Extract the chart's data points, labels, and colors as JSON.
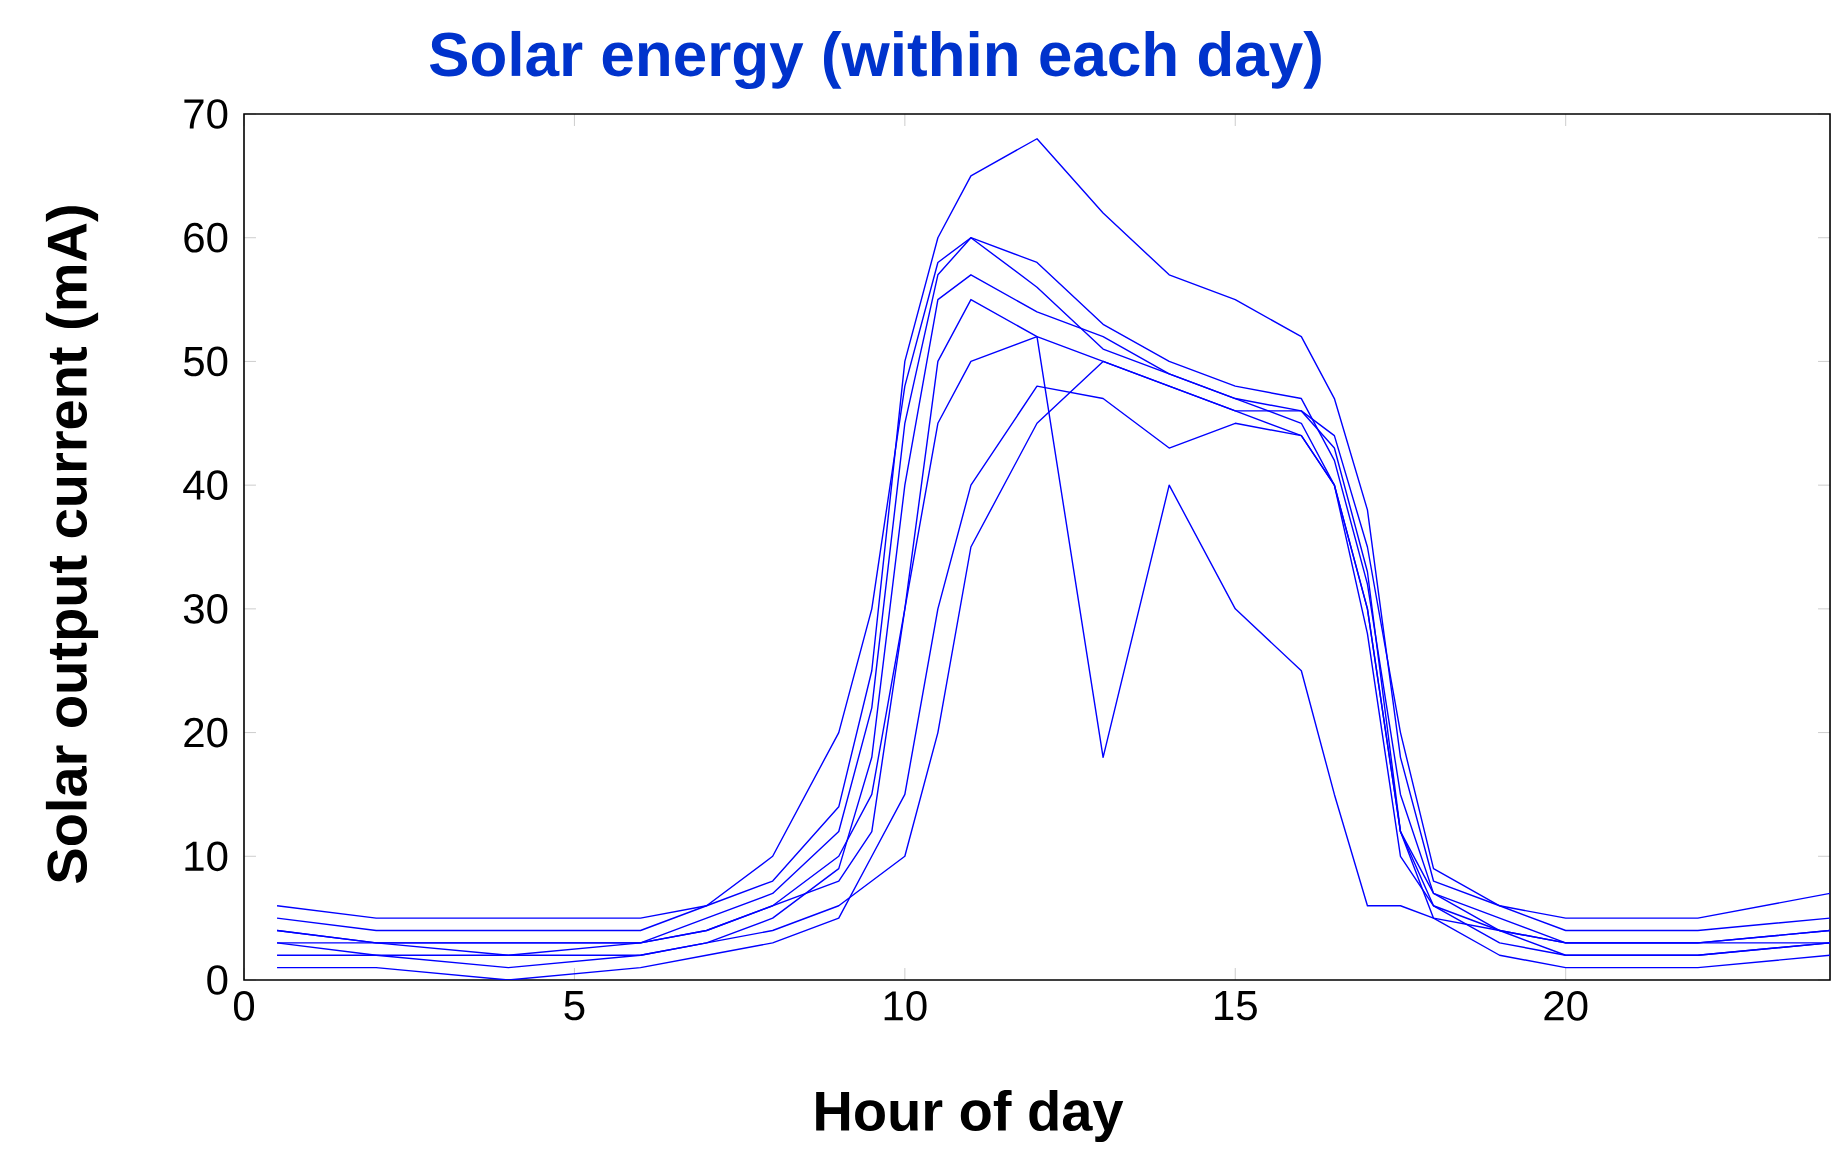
{
  "chart_data": {
    "type": "line",
    "title": "Solar energy (within each day)",
    "xlabel": "Hour of day",
    "ylabel": "Solar output current (mA)",
    "x": [
      0.5,
      2,
      4,
      6,
      7,
      8,
      9,
      9.5,
      10,
      10.5,
      11,
      12,
      13,
      14,
      15,
      16,
      16.5,
      17,
      17.5,
      18,
      19,
      20,
      22,
      24
    ],
    "series": [
      {
        "color": "#0000ff",
        "values": [
          4,
          3,
          3,
          3,
          5,
          7,
          12,
          22,
          45,
          57,
          60,
          58,
          53,
          50,
          48,
          47,
          42,
          32,
          15,
          7,
          5,
          3,
          3,
          4
        ]
      },
      {
        "color": "#0000ff",
        "values": [
          2,
          2,
          1,
          2,
          3,
          5,
          9,
          18,
          40,
          55,
          57,
          54,
          52,
          49,
          47,
          45,
          40,
          28,
          10,
          6,
          4,
          2,
          2,
          3
        ]
      },
      {
        "color": "#0000ff",
        "values": [
          5,
          4,
          4,
          4,
          6,
          10,
          20,
          30,
          48,
          58,
          60,
          56,
          51,
          49,
          47,
          46,
          44,
          35,
          20,
          9,
          6,
          4,
          4,
          5
        ]
      },
      {
        "color": "#0000ff",
        "values": [
          3,
          2,
          2,
          2,
          3,
          4,
          6,
          8,
          10,
          20,
          35,
          45,
          50,
          48,
          46,
          44,
          40,
          30,
          12,
          6,
          3,
          2,
          2,
          3
        ]
      },
      {
        "color": "#0000ff",
        "values": [
          4,
          3,
          3,
          3,
          4,
          6,
          10,
          15,
          30,
          45,
          50,
          52,
          18,
          40,
          30,
          25,
          15,
          6,
          6,
          5,
          4,
          3,
          3,
          4
        ]
      },
      {
        "color": "#0000ff",
        "values": [
          6,
          5,
          5,
          5,
          6,
          8,
          14,
          25,
          50,
          60,
          65,
          68,
          62,
          57,
          55,
          52,
          47,
          38,
          18,
          8,
          6,
          5,
          5,
          7
        ]
      },
      {
        "color": "#0000ff",
        "values": [
          1,
          1,
          0,
          1,
          2,
          3,
          5,
          10,
          15,
          30,
          40,
          48,
          47,
          43,
          45,
          44,
          40,
          30,
          12,
          5,
          2,
          1,
          1,
          2
        ]
      },
      {
        "color": "#0000ff",
        "values": [
          3,
          3,
          2,
          3,
          4,
          6,
          8,
          12,
          30,
          50,
          55,
          52,
          50,
          48,
          46,
          46,
          43,
          33,
          12,
          7,
          4,
          3,
          3,
          3
        ]
      }
    ],
    "xlim": [
      0,
      24
    ],
    "ylim": [
      0,
      70
    ],
    "xticks": [
      0,
      5,
      10,
      15,
      20
    ],
    "yticks": [
      0,
      10,
      20,
      30,
      40,
      50,
      60,
      70
    ],
    "grid": false,
    "marker": "none",
    "line_style": "solid"
  }
}
